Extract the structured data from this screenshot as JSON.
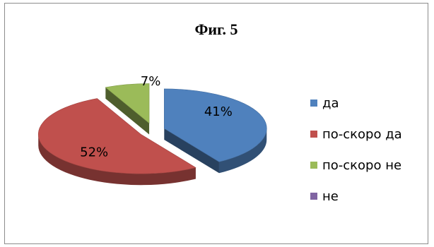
{
  "chart_data": {
    "type": "pie",
    "title": "Фиг. 5",
    "categories": [
      "да",
      "по-скоро да",
      "по-скоро не",
      "не"
    ],
    "values": [
      41,
      52,
      7,
      0
    ],
    "data_labels": [
      "41%",
      "52%",
      "7%",
      ""
    ],
    "colors": [
      "#4f81bd",
      "#c0504d",
      "#9bbb59",
      "#8064a2"
    ],
    "style": "3d-exploded",
    "legend_position": "right"
  }
}
